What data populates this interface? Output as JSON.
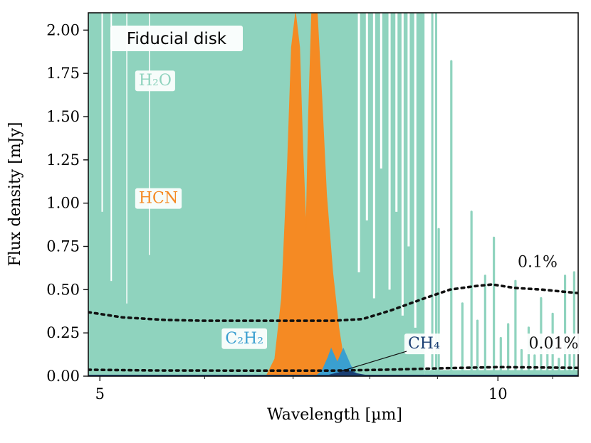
{
  "chart_data": {
    "type": "line",
    "title": "",
    "panel_label": "Fiducial disk",
    "xlabel": "Wavelength [µm]",
    "ylabel": "Flux density [mJy]",
    "xscale": "log",
    "xlim": [
      4.9,
      11.5
    ],
    "ylim": [
      0,
      2.1
    ],
    "grid": false,
    "x_ticks": [
      5,
      10
    ],
    "x_tick_labels": [
      "5",
      "10"
    ],
    "y_ticks": [
      0,
      0.25,
      0.5,
      0.75,
      1.0,
      1.25,
      1.5,
      1.75,
      2.0
    ],
    "y_tick_labels": [
      "0.00",
      "0.25",
      "0.50",
      "0.75",
      "1.00",
      "1.25",
      "1.50",
      "1.75",
      "2.00"
    ],
    "colors": {
      "H2O": "#8fd3be",
      "HCN": "#f58a23",
      "C2H2": "#3a9fd0",
      "CH4": "#1a3f73",
      "threshold": "#111111"
    },
    "series": [
      {
        "name": "H2O",
        "kind": "line-spectrum",
        "description": "dense forest of emission lines, saturating above 2.1 mJy below ~8.8 µm",
        "continuum_break_um": 8.8,
        "lines": [
          {
            "x": 9.02,
            "y": 0.85
          },
          {
            "x": 9.22,
            "y": 1.82
          },
          {
            "x": 9.4,
            "y": 0.42
          },
          {
            "x": 9.55,
            "y": 0.95
          },
          {
            "x": 9.65,
            "y": 0.32
          },
          {
            "x": 9.78,
            "y": 0.58
          },
          {
            "x": 9.93,
            "y": 0.8
          },
          {
            "x": 10.05,
            "y": 0.22
          },
          {
            "x": 10.18,
            "y": 0.3
          },
          {
            "x": 10.31,
            "y": 0.55
          },
          {
            "x": 10.42,
            "y": 0.15
          },
          {
            "x": 10.55,
            "y": 0.28
          },
          {
            "x": 10.66,
            "y": 0.12
          },
          {
            "x": 10.78,
            "y": 0.45
          },
          {
            "x": 10.9,
            "y": 0.2
          },
          {
            "x": 11.0,
            "y": 0.36
          },
          {
            "x": 11.12,
            "y": 0.1
          },
          {
            "x": 11.24,
            "y": 0.58
          },
          {
            "x": 11.33,
            "y": 0.18
          },
          {
            "x": 11.42,
            "y": 0.6
          }
        ]
      },
      {
        "name": "HCN",
        "kind": "band",
        "points": [
          {
            "x": 6.68,
            "y": 0.0
          },
          {
            "x": 6.78,
            "y": 0.1
          },
          {
            "x": 6.86,
            "y": 0.45
          },
          {
            "x": 6.93,
            "y": 1.2
          },
          {
            "x": 6.98,
            "y": 1.9
          },
          {
            "x": 7.03,
            "y": 2.1
          },
          {
            "x": 7.08,
            "y": 1.9
          },
          {
            "x": 7.12,
            "y": 1.3
          },
          {
            "x": 7.16,
            "y": 0.85
          },
          {
            "x": 7.19,
            "y": 1.5
          },
          {
            "x": 7.23,
            "y": 2.1
          },
          {
            "x": 7.3,
            "y": 2.1
          },
          {
            "x": 7.36,
            "y": 1.6
          },
          {
            "x": 7.42,
            "y": 1.05
          },
          {
            "x": 7.5,
            "y": 0.6
          },
          {
            "x": 7.58,
            "y": 0.28
          },
          {
            "x": 7.65,
            "y": 0.08
          },
          {
            "x": 7.72,
            "y": 0.0
          }
        ]
      },
      {
        "name": "C2H2",
        "kind": "band",
        "points": [
          {
            "x": 7.28,
            "y": 0.0
          },
          {
            "x": 7.36,
            "y": 0.03
          },
          {
            "x": 7.44,
            "y": 0.11
          },
          {
            "x": 7.48,
            "y": 0.16
          },
          {
            "x": 7.52,
            "y": 0.12
          },
          {
            "x": 7.56,
            "y": 0.08
          },
          {
            "x": 7.6,
            "y": 0.12
          },
          {
            "x": 7.64,
            "y": 0.16
          },
          {
            "x": 7.68,
            "y": 0.12
          },
          {
            "x": 7.74,
            "y": 0.06
          },
          {
            "x": 7.8,
            "y": 0.02
          },
          {
            "x": 7.88,
            "y": 0.0
          }
        ]
      },
      {
        "name": "CH4",
        "kind": "band",
        "points": [
          {
            "x": 7.4,
            "y": 0.0
          },
          {
            "x": 7.48,
            "y": 0.01
          },
          {
            "x": 7.58,
            "y": 0.02
          },
          {
            "x": 7.66,
            "y": 0.04
          },
          {
            "x": 7.72,
            "y": 0.03
          },
          {
            "x": 7.82,
            "y": 0.015
          },
          {
            "x": 7.95,
            "y": 0.005
          },
          {
            "x": 8.05,
            "y": 0.0
          }
        ]
      },
      {
        "name": "0.1% threshold",
        "kind": "dotted",
        "points": [
          {
            "x": 4.9,
            "y": 0.37
          },
          {
            "x": 5.2,
            "y": 0.34
          },
          {
            "x": 5.6,
            "y": 0.325
          },
          {
            "x": 6.0,
            "y": 0.32
          },
          {
            "x": 6.5,
            "y": 0.32
          },
          {
            "x": 7.0,
            "y": 0.32
          },
          {
            "x": 7.5,
            "y": 0.32
          },
          {
            "x": 7.9,
            "y": 0.33
          },
          {
            "x": 8.3,
            "y": 0.38
          },
          {
            "x": 8.8,
            "y": 0.45
          },
          {
            "x": 9.2,
            "y": 0.5
          },
          {
            "x": 9.6,
            "y": 0.52
          },
          {
            "x": 9.9,
            "y": 0.53
          },
          {
            "x": 10.3,
            "y": 0.51
          },
          {
            "x": 10.8,
            "y": 0.5
          },
          {
            "x": 11.5,
            "y": 0.48
          }
        ]
      },
      {
        "name": "0.01% threshold",
        "kind": "dotted",
        "points": [
          {
            "x": 4.9,
            "y": 0.037
          },
          {
            "x": 5.5,
            "y": 0.033
          },
          {
            "x": 6.5,
            "y": 0.032
          },
          {
            "x": 7.5,
            "y": 0.032
          },
          {
            "x": 8.3,
            "y": 0.038
          },
          {
            "x": 9.2,
            "y": 0.047
          },
          {
            "x": 10.0,
            "y": 0.052
          },
          {
            "x": 10.8,
            "y": 0.05
          },
          {
            "x": 11.5,
            "y": 0.048
          }
        ]
      }
    ],
    "annotations": [
      {
        "id": "h2o",
        "text": "H₂O",
        "color": "#8fd3be",
        "x": 5.35,
        "y": 1.68
      },
      {
        "id": "hcn",
        "text": "HCN",
        "color": "#f58a23",
        "x": 5.35,
        "y": 1.0
      },
      {
        "id": "c2h2",
        "text": "C₂H₂",
        "color": "#3a9fd0",
        "x": 6.22,
        "y": 0.19
      },
      {
        "id": "ch4",
        "text": "CH₄",
        "color": "#1a3f73",
        "x": 8.55,
        "y": 0.16
      },
      {
        "id": "pct01",
        "text": "0.1%",
        "color": "#111111",
        "x": 10.35,
        "y": 0.63
      },
      {
        "id": "pct001",
        "text": "0.01%",
        "color": "#111111",
        "x": 10.55,
        "y": 0.16
      }
    ]
  }
}
